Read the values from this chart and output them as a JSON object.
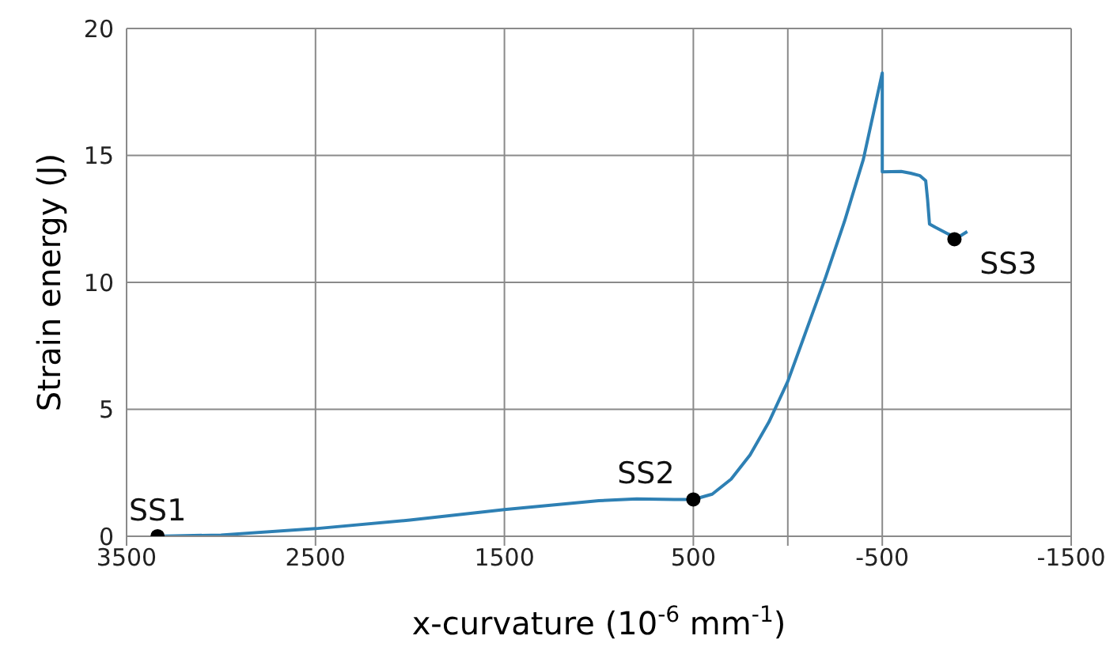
{
  "chart_data": {
    "type": "line",
    "xlabel": "x-curvature (10$^{-6}$ mm$^{-1}$)",
    "ylabel": "Strain energy (J)",
    "xlim": [
      3500,
      -1500
    ],
    "xticks": [
      3500,
      2500,
      1500,
      500,
      {
        "value": 0,
        "label": null
      },
      -500,
      -1500
    ],
    "ylim": [
      0,
      20
    ],
    "yticks": [
      0,
      5,
      10,
      15,
      20
    ],
    "grid": true,
    "series": [
      {
        "color": "#2e80b4",
        "marker": "none",
        "x": [
          3336,
          3000,
          2500,
          2000,
          1500,
          1000,
          800,
          600,
          500,
          400,
          300,
          200,
          100,
          0,
          -100,
          -200,
          -300,
          -400,
          -500,
          -500,
          -600,
          -650,
          -700,
          -730,
          -740,
          -750,
          -780,
          -850,
          -900,
          -950
        ],
        "values": [
          0,
          0.05,
          0.3,
          0.64,
          1.05,
          1.4,
          1.47,
          1.45,
          1.45,
          1.66,
          2.25,
          3.2,
          4.5,
          6.1,
          8.15,
          10.2,
          12.4,
          14.85,
          18.25,
          14.35,
          14.37,
          14.3,
          14.2,
          14.0,
          13.25,
          12.3,
          12.17,
          11.9,
          11.77,
          12.0
        ]
      },
      {
        "type": "scatter",
        "color": "#000000",
        "marker": "circle",
        "x": [
          3336,
          500,
          -882
        ],
        "values": [
          0,
          1.45,
          11.7
        ]
      }
    ],
    "annotations": [
      {
        "text": "SS1",
        "x": 3336,
        "y": 0
      },
      {
        "text": "SS2",
        "x": 500,
        "y": 1.45
      },
      {
        "text": "SS3",
        "x": -882,
        "y": 11.7
      }
    ]
  }
}
